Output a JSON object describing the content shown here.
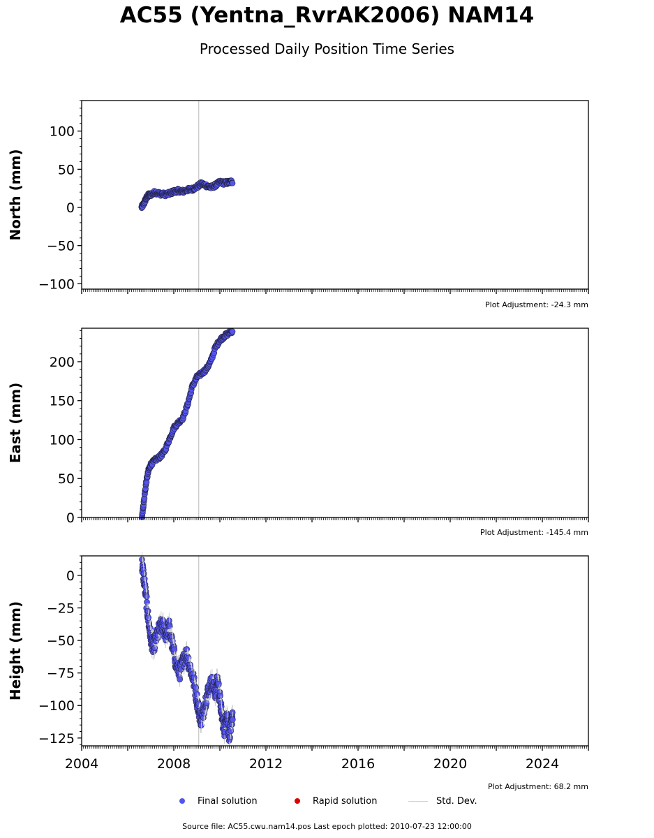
{
  "title": "AC55 (Yentna_RvrAK2006) NAM14",
  "subtitle": "Processed Daily Position Time Series",
  "legend": {
    "final": "Final solution",
    "rapid": "Rapid solution",
    "std": "Std. Dev."
  },
  "footer": "Source file: AC55.cwu.nam14.pos  Last epoch plotted: 2010-07-23 12:00:00",
  "colors": {
    "final": "#5555ee",
    "rapid": "#dd0000",
    "std": "#cfcfcf",
    "vline": "#cccccc"
  },
  "chart_data": [
    {
      "type": "scatter",
      "ylabel": "North (mm)",
      "adjustment": "Plot Adjustment: -24.3 mm",
      "xlim": [
        2004.0,
        2026.0
      ],
      "ylim": [
        -107,
        140
      ],
      "yticks": [
        -100,
        -50,
        0,
        50,
        100
      ],
      "ytick_labels": [
        "−100",
        "−50",
        "0",
        "50",
        "100"
      ],
      "vline_x": 2009.08,
      "show_xticklabels": false,
      "series": [
        {
          "name": "Final solution",
          "x": [
            2006.6,
            2006.7,
            2006.8,
            2006.9,
            2007.0,
            2007.2,
            2007.4,
            2007.6,
            2007.8,
            2008.0,
            2008.2,
            2008.4,
            2008.6,
            2008.8,
            2009.0,
            2009.2,
            2009.4,
            2009.6,
            2009.8,
            2010.0,
            2010.2,
            2010.4,
            2010.56
          ],
          "y": [
            0,
            5,
            12,
            16,
            17,
            20,
            18,
            17,
            18,
            21,
            22,
            21,
            23,
            24,
            27,
            31,
            29,
            26,
            29,
            33,
            32,
            33,
            34
          ]
        }
      ]
    },
    {
      "type": "scatter",
      "ylabel": "East (mm)",
      "adjustment": "Plot Adjustment: -145.4 mm",
      "xlim": [
        2004.0,
        2026.0
      ],
      "ylim": [
        0,
        243
      ],
      "yticks": [
        0,
        50,
        100,
        150,
        200
      ],
      "ytick_labels": [
        "0",
        "50",
        "100",
        "150",
        "200"
      ],
      "vline_x": 2009.08,
      "show_xticklabels": false,
      "series": [
        {
          "name": "Final solution",
          "x": [
            2006.62,
            2006.7,
            2006.8,
            2006.9,
            2007.0,
            2007.2,
            2007.4,
            2007.6,
            2007.8,
            2008.0,
            2008.2,
            2008.4,
            2008.6,
            2008.8,
            2009.0,
            2009.2,
            2009.4,
            2009.6,
            2009.8,
            2010.0,
            2010.2,
            2010.4,
            2010.56
          ],
          "y": [
            2,
            20,
            45,
            60,
            68,
            74,
            78,
            85,
            100,
            115,
            122,
            128,
            145,
            168,
            180,
            185,
            190,
            200,
            218,
            228,
            233,
            237,
            240
          ]
        }
      ]
    },
    {
      "type": "scatter",
      "ylabel": "Height (mm)",
      "adjustment": "Plot Adjustment: 68.2 mm",
      "xlim": [
        2004.0,
        2026.0
      ],
      "ylim": [
        -131,
        15
      ],
      "yticks": [
        -125,
        -100,
        -75,
        -50,
        -25,
        0
      ],
      "ytick_labels": [
        "−125",
        "−100",
        "−75",
        "−50",
        "−25",
        "0"
      ],
      "vline_x": 2009.08,
      "show_xticklabels": true,
      "xticks": [
        2004,
        2008,
        2012,
        2016,
        2020,
        2024
      ],
      "xtick_labels": [
        "2004",
        "2008",
        "2012",
        "2016",
        "2020",
        "2024"
      ],
      "series": [
        {
          "name": "Final solution",
          "x": [
            2006.62,
            2006.7,
            2006.8,
            2006.9,
            2007.0,
            2007.1,
            2007.2,
            2007.35,
            2007.5,
            2007.65,
            2007.8,
            2007.95,
            2008.1,
            2008.25,
            2008.4,
            2008.55,
            2008.7,
            2008.85,
            2009.0,
            2009.1,
            2009.2,
            2009.35,
            2009.5,
            2009.65,
            2009.8,
            2009.9,
            2010.0,
            2010.1,
            2010.2,
            2010.3,
            2010.4,
            2010.5,
            2010.56
          ],
          "y": [
            8,
            -2,
            -18,
            -35,
            -48,
            -55,
            -50,
            -42,
            -38,
            -45,
            -40,
            -55,
            -68,
            -75,
            -66,
            -60,
            -70,
            -80,
            -95,
            -105,
            -112,
            -98,
            -88,
            -82,
            -90,
            -80,
            -95,
            -110,
            -118,
            -105,
            -122,
            -115,
            -105
          ]
        }
      ]
    }
  ]
}
